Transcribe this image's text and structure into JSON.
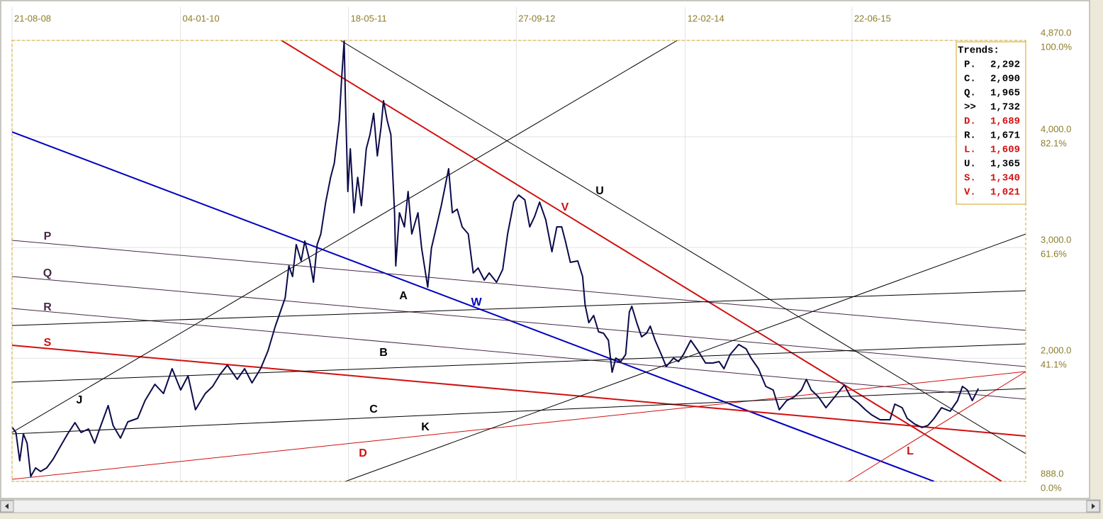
{
  "chart_data": {
    "type": "line",
    "x": [
      2008.64,
      2008.67,
      2008.7,
      2008.73,
      2008.76,
      2008.79,
      2008.83,
      2008.87,
      2008.92,
      2008.97,
      2009.03,
      2009.09,
      2009.15,
      2009.2,
      2009.26,
      2009.31,
      2009.35,
      2009.42,
      2009.46,
      2009.52,
      2009.58,
      2009.66,
      2009.72,
      2009.8,
      2009.87,
      2009.94,
      2010.01,
      2010.07,
      2010.13,
      2010.21,
      2010.27,
      2010.33,
      2010.39,
      2010.47,
      2010.53,
      2010.59,
      2010.66,
      2010.72,
      2010.78,
      2010.82,
      2010.86,
      2010.89,
      2010.92,
      2010.95,
      2010.99,
      2011.02,
      2011.06,
      2011.09,
      2011.12,
      2011.15,
      2011.19,
      2011.23,
      2011.26,
      2011.3,
      2011.32,
      2011.34,
      2011.35,
      2011.37,
      2011.39,
      2011.42,
      2011.45,
      2011.48,
      2011.52,
      2011.55,
      2011.58,
      2011.61,
      2011.64,
      2011.66,
      2011.69,
      2011.72,
      2011.75,
      2011.76,
      2011.79,
      2011.83,
      2011.86,
      2011.89,
      2011.94,
      2011.97,
      2012.02,
      2012.05,
      2012.09,
      2012.13,
      2012.19,
      2012.22,
      2012.26,
      2012.3,
      2012.35,
      2012.39,
      2012.43,
      2012.48,
      2012.52,
      2012.58,
      2012.63,
      2012.67,
      2012.72,
      2012.76,
      2012.81,
      2012.85,
      2012.89,
      2012.93,
      2012.98,
      2013.03,
      2013.07,
      2013.11,
      2013.14,
      2013.18,
      2013.24,
      2013.28,
      2013.3,
      2013.33,
      2013.37,
      2013.41,
      2013.45,
      2013.49,
      2013.52,
      2013.55,
      2013.59,
      2013.63,
      2013.66,
      2013.68,
      2013.72,
      2013.76,
      2013.8,
      2013.83,
      2013.87,
      2013.92,
      2013.96,
      2014.02,
      2014.06,
      2014.1,
      2014.16,
      2014.22,
      2014.28,
      2014.34,
      2014.39,
      2014.43,
      2014.48,
      2014.55,
      2014.61,
      2014.65,
      2014.71,
      2014.77,
      2014.83,
      2014.88,
      2014.94,
      2015.0,
      2015.06,
      2015.1,
      2015.14,
      2015.2,
      2015.26,
      2015.33,
      2015.41,
      2015.46,
      2015.52,
      2015.58,
      2015.63,
      2015.7,
      2015.78,
      2015.82,
      2015.88,
      2015.92,
      2015.98,
      2016.04,
      2016.09,
      2016.14,
      2016.2,
      2016.27,
      2016.33,
      2016.37,
      2016.41,
      2016.45,
      2016.5
    ],
    "series": [
      {
        "color": "#0b0b4a",
        "values": [
          1375,
          1330,
          1074,
          1317,
          1234,
          933,
          1010,
          978,
          1010,
          1086,
          1202,
          1317,
          1419,
          1330,
          1362,
          1234,
          1362,
          1573,
          1394,
          1279,
          1426,
          1458,
          1618,
          1765,
          1682,
          1906,
          1714,
          1842,
          1535,
          1682,
          1746,
          1855,
          1938,
          1810,
          1906,
          1778,
          1906,
          2066,
          2290,
          2418,
          2546,
          2834,
          2738,
          3026,
          2879,
          3058,
          2879,
          2687,
          3026,
          3122,
          3410,
          3634,
          3762,
          4147,
          4531,
          4864,
          4339,
          3506,
          3891,
          3314,
          3634,
          3378,
          3891,
          4019,
          4211,
          3827,
          4083,
          4326,
          4147,
          4019,
          3314,
          2834,
          3314,
          3186,
          3506,
          3122,
          3314,
          2994,
          2642,
          2994,
          3186,
          3378,
          3711,
          3314,
          3346,
          3186,
          3122,
          2770,
          2815,
          2706,
          2770,
          2687,
          2802,
          3122,
          3410,
          3474,
          3430,
          3186,
          3282,
          3410,
          3250,
          2962,
          3186,
          3186,
          3058,
          2866,
          2879,
          2738,
          2482,
          2322,
          2386,
          2239,
          2226,
          2162,
          1874,
          2002,
          1970,
          2034,
          2418,
          2469,
          2322,
          2194,
          2226,
          2290,
          2162,
          2034,
          1925,
          2002,
          1970,
          2034,
          2162,
          2066,
          1957,
          1957,
          1970,
          1906,
          2034,
          2124,
          2085,
          2002,
          1906,
          1746,
          1714,
          1535,
          1618,
          1650,
          1714,
          1810,
          1714,
          1650,
          1554,
          1650,
          1759,
          1650,
          1599,
          1535,
          1490,
          1445,
          1445,
          1586,
          1554,
          1458,
          1407,
          1375,
          1394,
          1458,
          1554,
          1522,
          1618,
          1746,
          1714,
          1618,
          1727
        ]
      }
    ],
    "xlim": [
      2008.638,
      2016.885
    ],
    "xticks": [
      {
        "value": 2008.638,
        "label": "21-08-08"
      },
      {
        "value": 2010.008,
        "label": "04-01-10"
      },
      {
        "value": 2011.375,
        "label": "18-05-11"
      },
      {
        "value": 2012.74,
        "label": "27-09-12"
      },
      {
        "value": 2014.115,
        "label": "12-02-14"
      },
      {
        "value": 2015.471,
        "label": "22-06-15"
      }
    ],
    "ylim": [
      888,
      4870
    ],
    "yticks": [
      {
        "value": 888,
        "label": "888.0"
      },
      {
        "value": 2000,
        "label": "2,000.0"
      },
      {
        "value": 3000,
        "label": "3,000.0"
      },
      {
        "value": 4000,
        "label": "4,000.0"
      },
      {
        "value": 4870,
        "label": "4,870.0"
      }
    ],
    "ytick_percents": [
      "0.0%",
      "41.1%",
      "61.6%",
      "82.1%",
      "100.0%"
    ],
    "grid": true,
    "trendlines": [
      {
        "label": "V",
        "color": "#d01010",
        "width": 2,
        "x": [
          2010.83,
          2016.69
        ],
        "y": [
          4870,
          888
        ]
      },
      {
        "label": "W",
        "color": "#0000c0",
        "width": 2,
        "x": [
          2008.638,
          2016.14
        ],
        "y": [
          4044,
          888
        ]
      },
      {
        "label": "S",
        "color": "#d01010",
        "width": 2,
        "x": [
          2008.638,
          2016.885
        ],
        "y": [
          2117,
          1298
        ]
      },
      {
        "label": "D",
        "color": "#d01010",
        "width": 1,
        "x": [
          2008.638,
          2016.885
        ],
        "y": [
          907,
          1880
        ]
      },
      {
        "label": "L",
        "color": "#d01010",
        "width": 1,
        "x": [
          2015.44,
          2016.885
        ],
        "y": [
          888,
          1880
        ]
      },
      {
        "label": "P",
        "color": "#4a2848",
        "width": 1,
        "x": [
          2008.638,
          2016.885
        ],
        "y": [
          3065,
          2252
        ]
      },
      {
        "label": "Q",
        "color": "#4a2848",
        "width": 1,
        "x": [
          2008.638,
          2016.885
        ],
        "y": [
          2738,
          1925
        ]
      },
      {
        "label": "R",
        "color": "#4a2848",
        "width": 1,
        "x": [
          2008.638,
          2016.885
        ],
        "y": [
          2450,
          1631
        ]
      },
      {
        "label": "A",
        "color": "#000000",
        "width": 1,
        "x": [
          2008.638,
          2016.885
        ],
        "y": [
          2296,
          2610
        ]
      },
      {
        "label": "B",
        "color": "#000000",
        "width": 1,
        "x": [
          2008.638,
          2016.885
        ],
        "y": [
          1784,
          2130
        ]
      },
      {
        "label": "C",
        "color": "#000000",
        "width": 1,
        "x": [
          2008.638,
          2016.885
        ],
        "y": [
          1317,
          1727
        ]
      },
      {
        "label": "J",
        "color": "#000000",
        "width": 1,
        "x": [
          2008.638,
          2014.05
        ],
        "y": [
          1330,
          4870
        ]
      },
      {
        "label": "K",
        "color": "#000000",
        "width": 1,
        "x": [
          2011.35,
          2016.885
        ],
        "y": [
          888,
          3122
        ]
      },
      {
        "label": "U",
        "color": "#000000",
        "width": 1,
        "x": [
          2011.31,
          2016.885
        ],
        "y": [
          4870,
          1138
        ]
      }
    ],
    "trends_box": {
      "title": "Trends:",
      "labels": [
        "P.",
        "C.",
        "Q.",
        ">>",
        "D.",
        "R.",
        "L.",
        "U.",
        "S.",
        "V."
      ],
      "values": [
        2292,
        2090,
        1965,
        1732,
        1689,
        1671,
        1609,
        1365,
        1340,
        1021
      ],
      "value_labels": [
        "2,292",
        "2,090",
        "1,965",
        "1,732",
        "1,689",
        "1,671",
        "1,609",
        "1,365",
        "1,340",
        "1,021"
      ],
      "colors": [
        "#000000",
        "#000000",
        "#000000",
        "#000000",
        "#d01010",
        "#000000",
        "#d01010",
        "#000000",
        "#d01010",
        "#d01010"
      ]
    }
  }
}
